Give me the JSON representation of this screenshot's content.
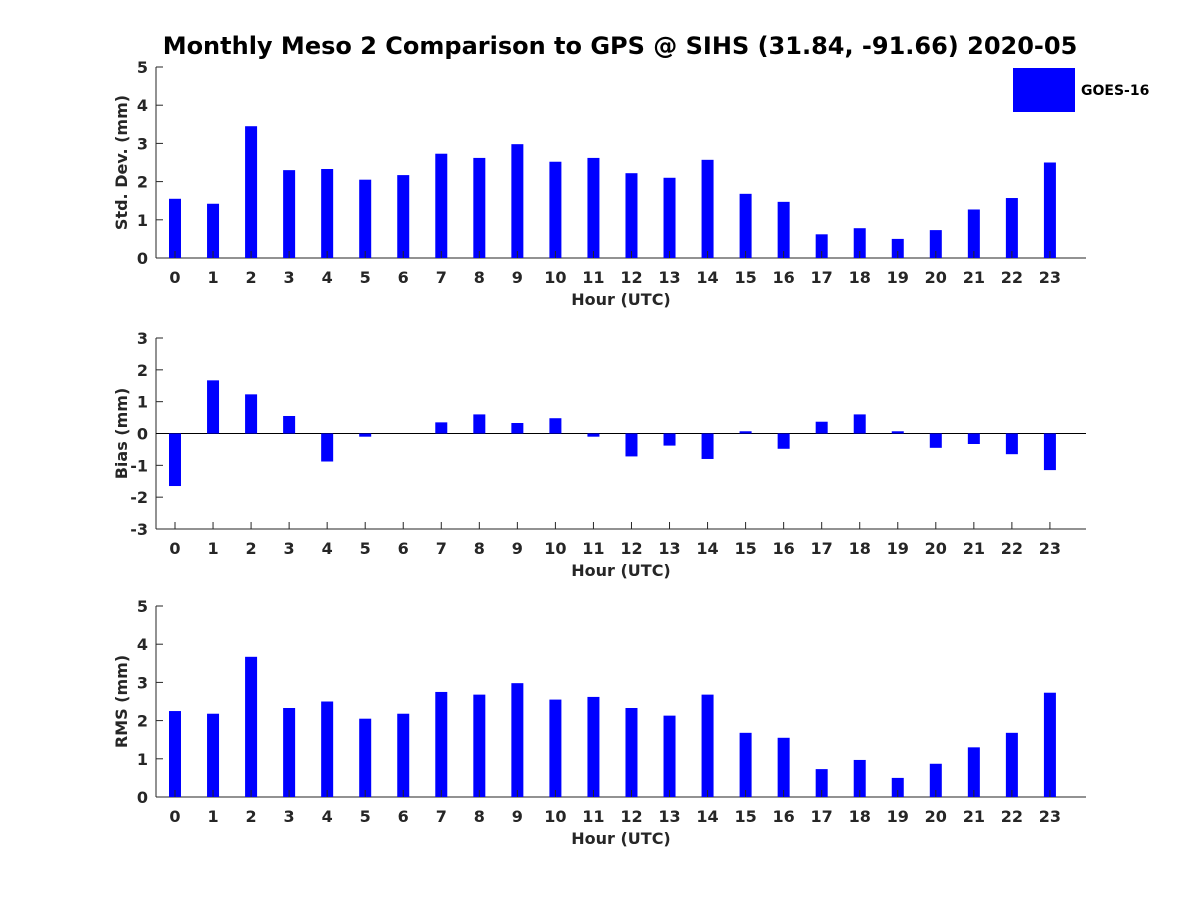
{
  "title": "Monthly Meso 2 Comparison to GPS @ SIHS (31.84, -91.66) 2020-05",
  "legend": {
    "label": "GOES-16",
    "color": "#0000ff",
    "position": "top-right"
  },
  "chart_data": [
    {
      "type": "bar",
      "name": "std-dev",
      "xlabel": "Hour (UTC)",
      "ylabel": "Std. Dev. (mm)",
      "ylim": [
        0,
        5
      ],
      "yticks": [
        0,
        1,
        2,
        3,
        4,
        5
      ],
      "categories": [
        "0",
        "1",
        "2",
        "3",
        "4",
        "5",
        "6",
        "7",
        "8",
        "9",
        "10",
        "11",
        "12",
        "13",
        "14",
        "15",
        "16",
        "17",
        "18",
        "19",
        "20",
        "21",
        "22",
        "23"
      ],
      "series": [
        {
          "name": "GOES-16",
          "color": "#0000ff",
          "values": [
            1.55,
            1.42,
            3.45,
            2.3,
            2.33,
            2.05,
            2.17,
            2.73,
            2.62,
            2.98,
            2.52,
            2.62,
            2.22,
            2.1,
            2.57,
            1.68,
            1.47,
            0.62,
            0.78,
            0.5,
            0.73,
            1.27,
            1.57,
            2.5
          ]
        }
      ]
    },
    {
      "type": "bar",
      "name": "bias",
      "xlabel": "Hour (UTC)",
      "ylabel": "Bias (mm)",
      "ylim": [
        -3,
        3
      ],
      "yticks": [
        -3,
        -2,
        -1,
        0,
        1,
        2,
        3
      ],
      "zero_line": true,
      "categories": [
        "0",
        "1",
        "2",
        "3",
        "4",
        "5",
        "6",
        "7",
        "8",
        "9",
        "10",
        "11",
        "12",
        "13",
        "14",
        "15",
        "16",
        "17",
        "18",
        "19",
        "20",
        "21",
        "22",
        "23"
      ],
      "series": [
        {
          "name": "GOES-16",
          "color": "#0000ff",
          "values": [
            -1.65,
            1.67,
            1.23,
            0.55,
            -0.88,
            -0.1,
            0.0,
            0.35,
            0.6,
            0.33,
            0.48,
            -0.1,
            -0.72,
            -0.38,
            -0.8,
            0.07,
            -0.48,
            0.37,
            0.6,
            0.07,
            -0.45,
            -0.33,
            -0.65,
            -1.15
          ]
        }
      ]
    },
    {
      "type": "bar",
      "name": "rms",
      "xlabel": "Hour (UTC)",
      "ylabel": "RMS (mm)",
      "ylim": [
        0,
        5
      ],
      "yticks": [
        0,
        1,
        2,
        3,
        4,
        5
      ],
      "categories": [
        "0",
        "1",
        "2",
        "3",
        "4",
        "5",
        "6",
        "7",
        "8",
        "9",
        "10",
        "11",
        "12",
        "13",
        "14",
        "15",
        "16",
        "17",
        "18",
        "19",
        "20",
        "21",
        "22",
        "23"
      ],
      "series": [
        {
          "name": "GOES-16",
          "color": "#0000ff",
          "values": [
            2.25,
            2.18,
            3.67,
            2.33,
            2.5,
            2.05,
            2.18,
            2.75,
            2.68,
            2.98,
            2.55,
            2.62,
            2.33,
            2.13,
            2.68,
            1.68,
            1.55,
            0.73,
            0.97,
            0.5,
            0.87,
            1.3,
            1.68,
            2.73
          ]
        }
      ]
    }
  ]
}
